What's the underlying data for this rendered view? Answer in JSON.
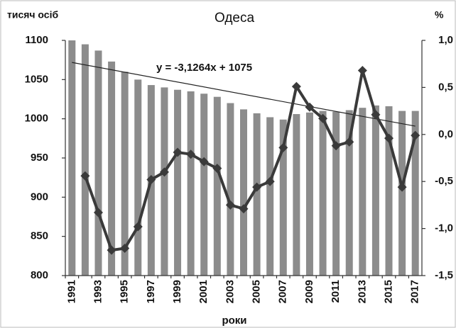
{
  "chart_data": {
    "type": "bar-line",
    "title": "Одеса",
    "y_label": "тисяч осіб",
    "y2_label": "%",
    "x_label": "роки",
    "categories": [
      "1991",
      null,
      "1993",
      null,
      "1995",
      null,
      "1997",
      null,
      "1999",
      null,
      "2001",
      null,
      "2003",
      null,
      "2005",
      null,
      "2007",
      null,
      "2009",
      null,
      "2011",
      null,
      "2013",
      null,
      "2015",
      null,
      "2017"
    ],
    "series": [
      {
        "kind": "bar",
        "color": "#8c8c8c",
        "values": [
          1100,
          1095,
          1087,
          1073,
          1060,
          1050,
          1043,
          1040,
          1037,
          1035,
          1032,
          1028,
          1020,
          1012,
          1007,
          1002,
          999,
          1006,
          1008,
          1010,
          1009,
          1011,
          1014,
          1017,
          1016,
          1010,
          1010
        ]
      },
      {
        "kind": "line",
        "axis": "y2",
        "color": "#3a3a3a",
        "values": [
          null,
          -0.44,
          -0.83,
          -1.23,
          -1.21,
          -0.98,
          -0.48,
          -0.4,
          -0.19,
          -0.21,
          -0.29,
          -0.36,
          -0.75,
          -0.79,
          -0.56,
          -0.5,
          -0.14,
          0.51,
          0.29,
          0.17,
          -0.12,
          -0.08,
          0.68,
          0.21,
          -0.04,
          -0.56,
          -0.01
        ]
      }
    ],
    "trendline": {
      "label": "y = -3,1264x + 1075",
      "slope": -3.1264,
      "intercept": 1075,
      "color": "#222222"
    },
    "ylim": [
      800,
      1100
    ],
    "yticks": [
      800,
      850,
      900,
      950,
      1000,
      1050,
      1100
    ],
    "y2lim": [
      -1.5,
      1.0
    ],
    "y2ticks": [
      {
        "value": -1.5,
        "label": "-1,5"
      },
      {
        "value": -1.0,
        "label": "-1,0"
      },
      {
        "value": -0.5,
        "label": "-0,5"
      },
      {
        "value": 0.0,
        "label": "0,0"
      },
      {
        "value": 0.5,
        "label": "0,5"
      },
      {
        "value": 1.0,
        "label": "1,0"
      }
    ]
  }
}
